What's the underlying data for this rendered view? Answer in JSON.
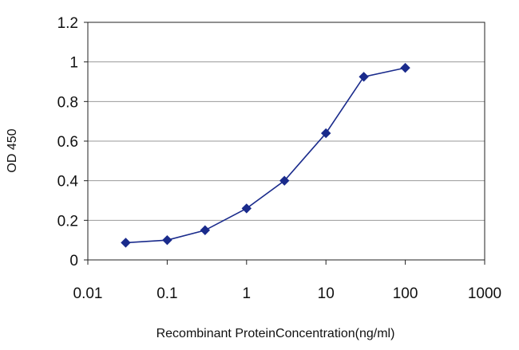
{
  "chart_data": {
    "type": "line",
    "x_scale": "log",
    "xlabel": "Recombinant ProteinConcentration(ng/ml)",
    "ylabel": "OD 450",
    "xlim": [
      0.01,
      1000
    ],
    "ylim": [
      0,
      1.2
    ],
    "x_ticks": [
      "0.01",
      "0.1",
      "1",
      "10",
      "100",
      "1000"
    ],
    "x_tick_values": [
      0.01,
      0.1,
      1,
      10,
      100,
      1000
    ],
    "y_ticks": [
      "0",
      "0.2",
      "0.4",
      "0.6",
      "0.8",
      "1",
      "1.2"
    ],
    "y_tick_values": [
      0,
      0.2,
      0.4,
      0.6,
      0.8,
      1,
      1.2
    ],
    "grid": "horizontal",
    "series": [
      {
        "color": "#1a2b8c",
        "x": [
          0.03,
          0.1,
          0.3,
          1,
          3,
          10,
          30,
          100
        ],
        "y": [
          0.087,
          0.1,
          0.15,
          0.26,
          0.4,
          0.64,
          0.925,
          0.97
        ]
      }
    ]
  }
}
